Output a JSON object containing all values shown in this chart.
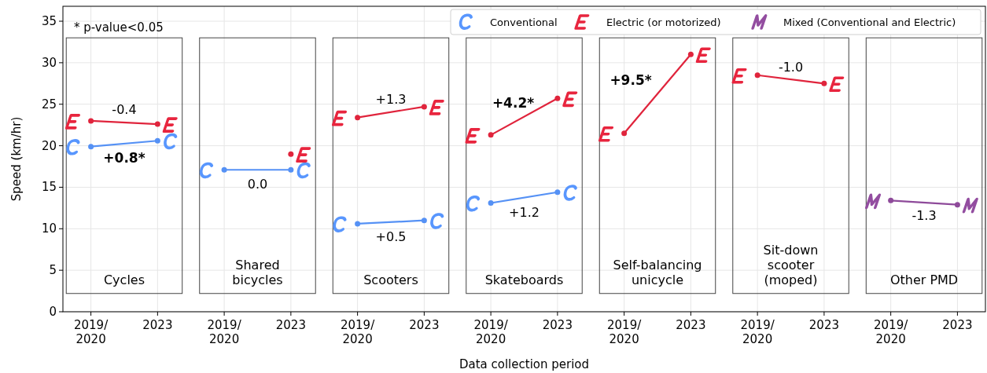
{
  "chart_data": {
    "type": "line",
    "xlabel": "Data collection period",
    "ylabel": "Speed (km/hr)",
    "categories": [
      "2019/\n2020",
      "2023",
      "2019/\n2020",
      "2023",
      "2019/\n2020",
      "2023",
      "2019/\n2020",
      "2023",
      "2019/\n2020",
      "2023",
      "2019/\n2020",
      "2023",
      "2019/\n2020",
      "2023"
    ],
    "ylim": [
      0,
      36.8
    ],
    "yticks": [
      0,
      5,
      10,
      15,
      20,
      25,
      30,
      35
    ],
    "grid": true,
    "legend": "top right",
    "marker": "circle",
    "series": [
      {
        "name": "Conventional",
        "color": "#5591f5",
        "values": [
          19.9,
          20.6,
          null,
          null,
          null,
          null,
          null,
          null,
          null,
          null,
          null,
          null,
          null,
          null
        ]
      },
      {
        "name": "Electric (or motorized)",
        "color": "#e0243c",
        "values": [
          23.0,
          22.6,
          null,
          null,
          null,
          null,
          null,
          null,
          null,
          null,
          null,
          null,
          null,
          null
        ]
      },
      {
        "color": "#5591f5",
        "values": [
          null,
          null,
          17.1,
          17.1,
          null,
          null,
          null,
          null,
          null,
          null,
          null,
          null,
          null,
          null
        ]
      },
      {
        "color": "#e0243c",
        "values": [
          null,
          null,
          null,
          19.0,
          null,
          null,
          null,
          null,
          null,
          null,
          null,
          null,
          null,
          null
        ]
      },
      {
        "color": "#e0243c",
        "values": [
          null,
          null,
          null,
          null,
          23.4,
          24.7,
          null,
          null,
          null,
          null,
          null,
          null,
          null,
          null
        ]
      },
      {
        "color": "#5591f5",
        "values": [
          null,
          null,
          null,
          null,
          10.6,
          11.0,
          null,
          null,
          null,
          null,
          null,
          null,
          null,
          null
        ]
      },
      {
        "color": "#e0243c",
        "values": [
          null,
          null,
          null,
          null,
          null,
          null,
          21.3,
          25.7,
          null,
          null,
          null,
          null,
          null,
          null
        ]
      },
      {
        "color": "#5591f5",
        "values": [
          null,
          null,
          null,
          null,
          null,
          null,
          13.1,
          14.4,
          null,
          null,
          null,
          null,
          null,
          null
        ]
      },
      {
        "color": "#e0243c",
        "values": [
          null,
          null,
          null,
          null,
          null,
          null,
          null,
          null,
          21.5,
          31.0,
          null,
          null,
          null,
          null
        ]
      },
      {
        "color": "#e0243c",
        "values": [
          null,
          null,
          null,
          null,
          null,
          null,
          null,
          null,
          null,
          null,
          28.5,
          27.5,
          null,
          null
        ]
      },
      {
        "name": "Mixed (Conventional and Electric)",
        "color": "#8e4a9a",
        "values": [
          null,
          null,
          null,
          null,
          null,
          null,
          null,
          null,
          null,
          null,
          null,
          null,
          13.4,
          12.9
        ]
      }
    ],
    "annotations": [
      "* p-value<0.05",
      "+0.8*",
      "-0.4",
      "0.0",
      "+1.3",
      "+0.5",
      "+4.2*",
      "+1.2",
      "+9.5*",
      "-1.0",
      "-1.3",
      "Cycles",
      "Shared\nbicycles",
      "Scooters",
      "Skateboards",
      "Self-balancing\nunicycle",
      "Sit-down\nscooter\n(moped)",
      "Other PMD"
    ]
  }
}
